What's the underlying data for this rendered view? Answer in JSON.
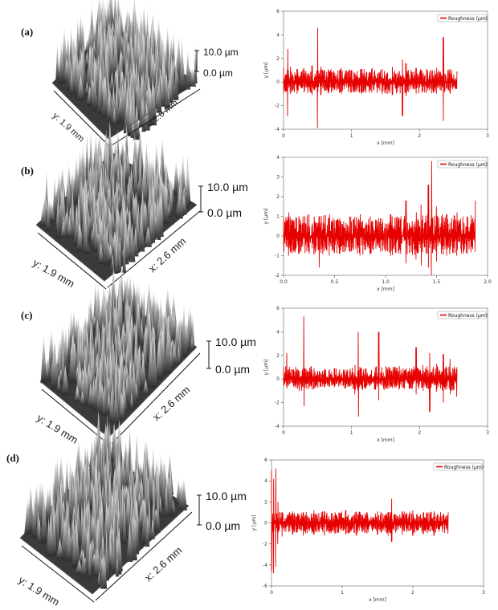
{
  "panels": [
    {
      "label": "(a)",
      "x_axis": "x: 2.6 mm",
      "y_axis": "y: 1.9 mm",
      "scale_max": "10.0 µm",
      "scale_min": "0.0 µm"
    },
    {
      "label": "(b)",
      "x_axis": "x: 2.6 mm",
      "y_axis": "y: 1.9 mm",
      "scale_max": "10.0 µm",
      "scale_min": "0.0 µm"
    },
    {
      "label": "(c)",
      "x_axis": "x: 2.6 mm",
      "y_axis": "y: 1.9 mm",
      "scale_max": "10.0 µm",
      "scale_min": "0.0 µm"
    },
    {
      "label": "(d)",
      "x_axis": "x: 2.6 mm",
      "y_axis": "y: 1.9 mm",
      "scale_max": "10.0 µm",
      "scale_min": "0.0 µm"
    }
  ],
  "chart_data": [
    {
      "type": "line",
      "xlabel": "x [mm]",
      "ylabel": "y [µm]",
      "xlim": [
        0,
        3
      ],
      "ylim": [
        -4,
        6
      ],
      "xticks": [
        "0",
        "1",
        "2",
        "3"
      ],
      "yticks": [
        "-4",
        "-2",
        "0",
        "2",
        "4",
        "6"
      ],
      "grid": false,
      "legend_position": "top-right",
      "series": [
        {
          "name": "Roughness (µm)",
          "color": "#e60000",
          "x": [
            0,
            0.06,
            0.1,
            0.2,
            0.3,
            0.42,
            0.5,
            0.55,
            0.7,
            0.85,
            1.0,
            1.15,
            1.3,
            1.45,
            1.6,
            1.75,
            1.8,
            1.95,
            2.1,
            2.25,
            2.35,
            2.45,
            2.55
          ],
          "upper": [
            1.2,
            2.8,
            1.3,
            1.1,
            1.2,
            1.4,
            4.6,
            1.3,
            1.1,
            1.2,
            1.0,
            1.1,
            1.2,
            1.1,
            1.3,
            1.9,
            1.6,
            1.2,
            1.1,
            1.2,
            3.8,
            1.1,
            0.9
          ],
          "lower": [
            -0.9,
            -2.9,
            -1.0,
            -1.0,
            -0.9,
            -1.1,
            -3.9,
            -1.1,
            -0.9,
            -1.0,
            -0.9,
            -1.0,
            -0.9,
            -1.0,
            -1.1,
            -2.9,
            -1.2,
            -1.0,
            -0.9,
            -1.0,
            -3.3,
            -1.0,
            -0.6
          ]
        }
      ]
    },
    {
      "type": "line",
      "xlabel": "x [mm]",
      "ylabel": "y [µm]",
      "xlim": [
        0,
        2.0
      ],
      "ylim": [
        -2,
        4
      ],
      "xticks": [
        "0.0",
        "0.5",
        "1.0",
        "1.5",
        "2.0"
      ],
      "yticks": [
        "-2",
        "-1",
        "0",
        "1",
        "2",
        "3",
        "4"
      ],
      "grid": false,
      "legend_position": "top-right",
      "series": [
        {
          "name": "Roughness (µm)",
          "color": "#e60000",
          "x": [
            0,
            0.05,
            0.15,
            0.25,
            0.35,
            0.45,
            0.55,
            0.65,
            0.75,
            0.85,
            0.95,
            1.05,
            1.15,
            1.2,
            1.3,
            1.35,
            1.42,
            1.45,
            1.5,
            1.6,
            1.7,
            1.8,
            1.88
          ],
          "upper": [
            0.9,
            1.2,
            1.0,
            1.1,
            1.0,
            1.1,
            0.9,
            1.0,
            1.1,
            1.0,
            0.9,
            1.1,
            1.0,
            1.8,
            1.2,
            1.6,
            2.6,
            3.8,
            1.5,
            1.1,
            1.2,
            1.0,
            1.8
          ],
          "lower": [
            -0.8,
            -1.0,
            -0.9,
            -0.9,
            -1.6,
            -1.0,
            -0.9,
            -0.8,
            -1.0,
            -0.9,
            -0.8,
            -1.0,
            -0.9,
            -1.4,
            -1.2,
            -1.5,
            -1.6,
            -2.0,
            -1.3,
            -1.0,
            -1.0,
            -0.9,
            -0.8
          ]
        }
      ]
    },
    {
      "type": "line",
      "xlabel": "x [mm]",
      "ylabel": "y [µm]",
      "xlim": [
        0,
        3
      ],
      "ylim": [
        -4,
        6
      ],
      "xticks": [
        "0",
        "1",
        "2",
        "3"
      ],
      "yticks": [
        "-4",
        "-2",
        "0",
        "2",
        "4",
        "6"
      ],
      "grid": false,
      "legend_position": "top-right",
      "series": [
        {
          "name": "Roughness (µm)",
          "color": "#e60000",
          "x": [
            0,
            0.05,
            0.15,
            0.3,
            0.45,
            0.6,
            0.75,
            0.9,
            1.05,
            1.1,
            1.2,
            1.35,
            1.4,
            1.55,
            1.7,
            1.85,
            1.95,
            2.05,
            2.15,
            2.25,
            2.35,
            2.45,
            2.55
          ],
          "upper": [
            1.0,
            2.2,
            0.8,
            5.3,
            0.9,
            0.8,
            0.9,
            0.8,
            1.2,
            4.0,
            0.9,
            1.0,
            4.0,
            1.0,
            1.1,
            0.9,
            2.7,
            1.2,
            2.2,
            1.3,
            2.1,
            1.7,
            1.0
          ],
          "lower": [
            -0.6,
            -0.8,
            -0.7,
            -2.3,
            -0.8,
            -0.7,
            -0.7,
            -0.8,
            -1.3,
            -3.2,
            -0.8,
            -0.9,
            -1.8,
            -0.8,
            -0.9,
            -0.8,
            -1.3,
            -1.0,
            -2.8,
            -1.1,
            -2.0,
            -1.3,
            -1.5
          ]
        }
      ]
    },
    {
      "type": "line",
      "xlabel": "x [mm]",
      "ylabel": "y [µm]",
      "xlim": [
        0,
        3
      ],
      "ylim": [
        -6,
        6
      ],
      "xticks": [
        "0",
        "1",
        "2",
        "3"
      ],
      "yticks": [
        "-6",
        "-4",
        "-2",
        "0",
        "2",
        "4",
        "6"
      ],
      "grid": false,
      "legend_position": "top-right",
      "series": [
        {
          "name": "Roughness (µm)",
          "color": "#e60000",
          "x": [
            0,
            0.03,
            0.06,
            0.09,
            0.15,
            0.3,
            0.45,
            0.6,
            0.75,
            0.9,
            1.05,
            1.2,
            1.35,
            1.5,
            1.65,
            1.7,
            1.85,
            2.0,
            2.15,
            2.3,
            2.5
          ],
          "upper": [
            5.0,
            4.2,
            5.2,
            2.0,
            1.0,
            1.1,
            1.0,
            1.2,
            1.1,
            1.0,
            1.2,
            1.1,
            1.0,
            1.1,
            1.0,
            2.3,
            1.1,
            1.2,
            1.0,
            1.1,
            1.0
          ],
          "lower": [
            -4.6,
            -4.8,
            -4.2,
            -2.0,
            -1.3,
            -1.1,
            -1.2,
            -1.1,
            -1.2,
            -1.0,
            -1.1,
            -1.2,
            -1.0,
            -1.1,
            -1.2,
            -1.8,
            -1.1,
            -1.2,
            -1.1,
            -1.2,
            -1.0
          ]
        }
      ]
    }
  ]
}
